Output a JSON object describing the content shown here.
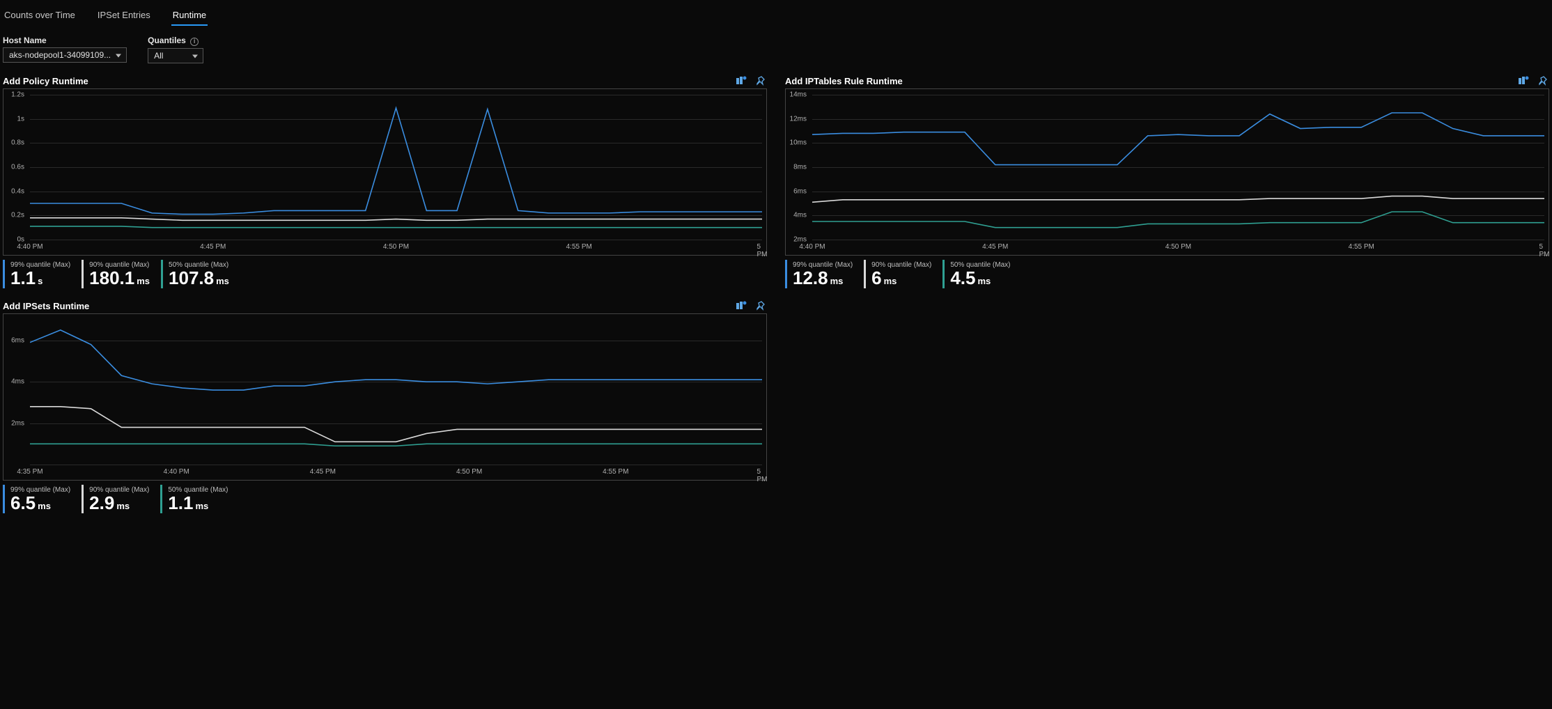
{
  "tabs": [
    {
      "label": "Counts over Time",
      "active": false
    },
    {
      "label": "IPSet Entries",
      "active": false
    },
    {
      "label": "Runtime",
      "active": true
    }
  ],
  "filters": {
    "hostname": {
      "label": "Host Name",
      "value": "aks-nodepool1-34099109..."
    },
    "quantiles": {
      "label": "Quantiles",
      "value": "All",
      "info": true
    }
  },
  "colors": {
    "bg": "#0a0a0a",
    "border": "#444444",
    "grid": "#2a2a2a",
    "axis_text": "#b0b0b0",
    "series_99": "#3a8de0",
    "series_90": "#d9d9d9",
    "series_50": "#2fa092",
    "metric_accent_99": "#3a8de0",
    "metric_accent_90": "#d9d9d9",
    "metric_accent_50": "#2fa092"
  },
  "charts": [
    {
      "id": "policy",
      "title": "Add Policy Runtime",
      "type": "line",
      "ylim": [
        0,
        1.2
      ],
      "yticks": [
        "0s",
        "0.2s",
        "0.4s",
        "0.6s",
        "0.8s",
        "1s",
        "1.2s"
      ],
      "xticks": [
        "4:40 PM",
        "4:45 PM",
        "4:50 PM",
        "4:55 PM",
        "5 PM"
      ],
      "series": {
        "p99": [
          0.3,
          0.3,
          0.3,
          0.3,
          0.22,
          0.21,
          0.21,
          0.22,
          0.24,
          0.24,
          0.24,
          0.24,
          1.09,
          0.24,
          0.24,
          1.08,
          0.24,
          0.22,
          0.22,
          0.22,
          0.23,
          0.23,
          0.23,
          0.23,
          0.23
        ],
        "p90": [
          0.18,
          0.18,
          0.18,
          0.18,
          0.17,
          0.16,
          0.16,
          0.16,
          0.16,
          0.16,
          0.16,
          0.16,
          0.17,
          0.16,
          0.16,
          0.17,
          0.17,
          0.17,
          0.17,
          0.17,
          0.17,
          0.17,
          0.17,
          0.17,
          0.17
        ],
        "p50": [
          0.11,
          0.11,
          0.11,
          0.11,
          0.1,
          0.1,
          0.1,
          0.1,
          0.1,
          0.1,
          0.1,
          0.1,
          0.1,
          0.1,
          0.1,
          0.1,
          0.1,
          0.1,
          0.1,
          0.1,
          0.1,
          0.1,
          0.1,
          0.1,
          0.1
        ]
      },
      "metrics": [
        {
          "label": "99% quantile (Max)",
          "value": "1.1",
          "unit": "s",
          "accent": "#3a8de0"
        },
        {
          "label": "90% quantile (Max)",
          "value": "180.1",
          "unit": "ms",
          "accent": "#d9d9d9"
        },
        {
          "label": "50% quantile (Max)",
          "value": "107.8",
          "unit": "ms",
          "accent": "#2fa092"
        }
      ]
    },
    {
      "id": "iptables",
      "title": "Add IPTables Rule Runtime",
      "type": "line",
      "ylim": [
        2,
        14
      ],
      "yticks": [
        "2ms",
        "4ms",
        "6ms",
        "8ms",
        "10ms",
        "12ms",
        "14ms"
      ],
      "xticks": [
        "4:40 PM",
        "4:45 PM",
        "4:50 PM",
        "4:55 PM",
        "5 PM"
      ],
      "series": {
        "p99": [
          10.7,
          10.8,
          10.8,
          10.9,
          10.9,
          10.9,
          8.2,
          8.2,
          8.2,
          8.2,
          8.2,
          10.6,
          10.7,
          10.6,
          10.6,
          12.4,
          11.2,
          11.3,
          11.3,
          12.5,
          12.5,
          11.2,
          10.6,
          10.6,
          10.6
        ],
        "p90": [
          5.1,
          5.3,
          5.3,
          5.3,
          5.3,
          5.3,
          5.3,
          5.3,
          5.3,
          5.3,
          5.3,
          5.3,
          5.3,
          5.3,
          5.3,
          5.4,
          5.4,
          5.4,
          5.4,
          5.6,
          5.6,
          5.4,
          5.4,
          5.4,
          5.4
        ],
        "p50": [
          3.5,
          3.5,
          3.5,
          3.5,
          3.5,
          3.5,
          3.0,
          3.0,
          3.0,
          3.0,
          3.0,
          3.3,
          3.3,
          3.3,
          3.3,
          3.4,
          3.4,
          3.4,
          3.4,
          4.3,
          4.3,
          3.4,
          3.4,
          3.4,
          3.4
        ]
      },
      "metrics": [
        {
          "label": "99% quantile (Max)",
          "value": "12.8",
          "unit": "ms",
          "accent": "#3a8de0"
        },
        {
          "label": "90% quantile (Max)",
          "value": "6",
          "unit": "ms",
          "accent": "#d9d9d9"
        },
        {
          "label": "50% quantile (Max)",
          "value": "4.5",
          "unit": "ms",
          "accent": "#2fa092"
        }
      ]
    },
    {
      "id": "ipsets",
      "title": "Add IPSets Runtime",
      "type": "line",
      "ylim": [
        0,
        7
      ],
      "yticks": [
        "",
        "2ms",
        "4ms",
        "6ms"
      ],
      "ytick_positions": [
        0,
        2,
        4,
        6
      ],
      "xticks": [
        "4:35 PM",
        "4:40 PM",
        "4:45 PM",
        "4:50 PM",
        "4:55 PM",
        "5 PM"
      ],
      "series": {
        "p99": [
          5.9,
          6.5,
          5.8,
          4.3,
          3.9,
          3.7,
          3.6,
          3.6,
          3.8,
          3.8,
          4.0,
          4.1,
          4.1,
          4.0,
          4.0,
          3.9,
          4.0,
          4.1,
          4.1,
          4.1,
          4.1,
          4.1,
          4.1,
          4.1,
          4.1
        ],
        "p90": [
          2.8,
          2.8,
          2.7,
          1.8,
          1.8,
          1.8,
          1.8,
          1.8,
          1.8,
          1.8,
          1.1,
          1.1,
          1.1,
          1.5,
          1.7,
          1.7,
          1.7,
          1.7,
          1.7,
          1.7,
          1.7,
          1.7,
          1.7,
          1.7,
          1.7
        ],
        "p50": [
          1.0,
          1.0,
          1.0,
          1.0,
          1.0,
          1.0,
          1.0,
          1.0,
          1.0,
          1.0,
          0.9,
          0.9,
          0.9,
          1.0,
          1.0,
          1.0,
          1.0,
          1.0,
          1.0,
          1.0,
          1.0,
          1.0,
          1.0,
          1.0,
          1.0
        ]
      },
      "metrics": [
        {
          "label": "99% quantile (Max)",
          "value": "6.5",
          "unit": "ms",
          "accent": "#3a8de0"
        },
        {
          "label": "90% quantile (Max)",
          "value": "2.9",
          "unit": "ms",
          "accent": "#d9d9d9"
        },
        {
          "label": "50% quantile (Max)",
          "value": "1.1",
          "unit": "ms",
          "accent": "#2fa092"
        }
      ]
    }
  ]
}
